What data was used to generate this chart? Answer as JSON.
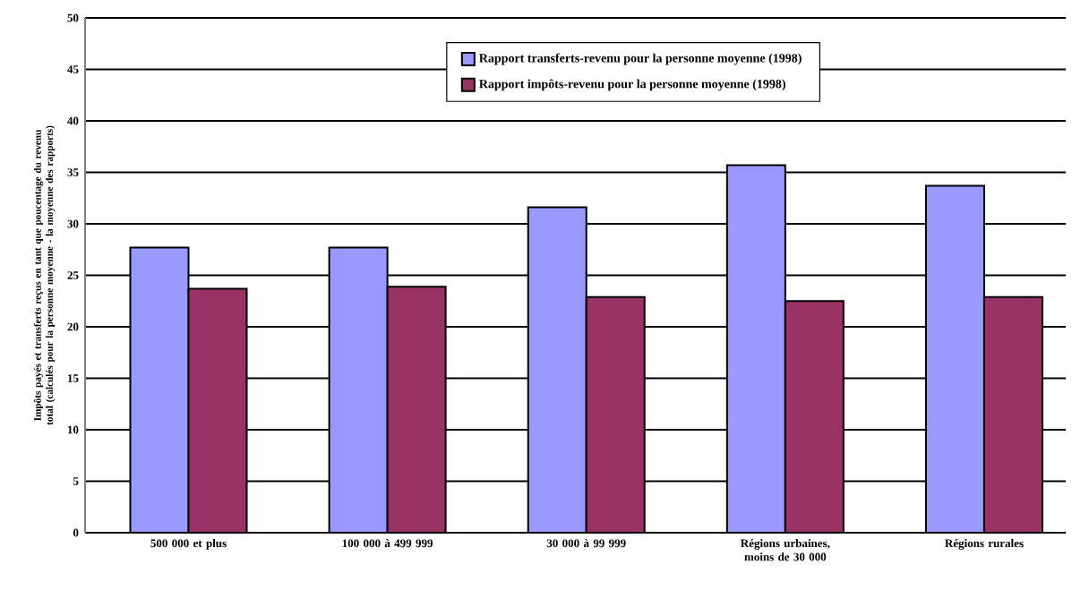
{
  "chart_data": {
    "type": "bar",
    "ylabel": "Impôts payés et transferts reçus en tant que poucentage du revenu total (calculés pour la personne moyenne - la moyenne des rapports)",
    "categories": [
      "500 000 et plus",
      "100 000 à 499 999",
      "30 000 à 99 999",
      "Régions urbaines, moins de 30 000",
      "Régions rurales"
    ],
    "series": [
      {
        "name": "Rapport transferts-revenu pour la  personne moyenne (1998)",
        "color": "#9999ff",
        "values": [
          27.7,
          27.7,
          31.6,
          35.7,
          33.7
        ]
      },
      {
        "name": "Rapport impôts-revenu pour la  personne moyenne (1998)",
        "color": "#993366",
        "values": [
          23.7,
          23.9,
          22.9,
          22.5,
          22.9
        ]
      }
    ],
    "ylim": [
      0,
      50
    ],
    "yticks": [
      0,
      5,
      10,
      15,
      20,
      25,
      30,
      35,
      40,
      45,
      50
    ],
    "grid": "y",
    "legend": "top"
  }
}
